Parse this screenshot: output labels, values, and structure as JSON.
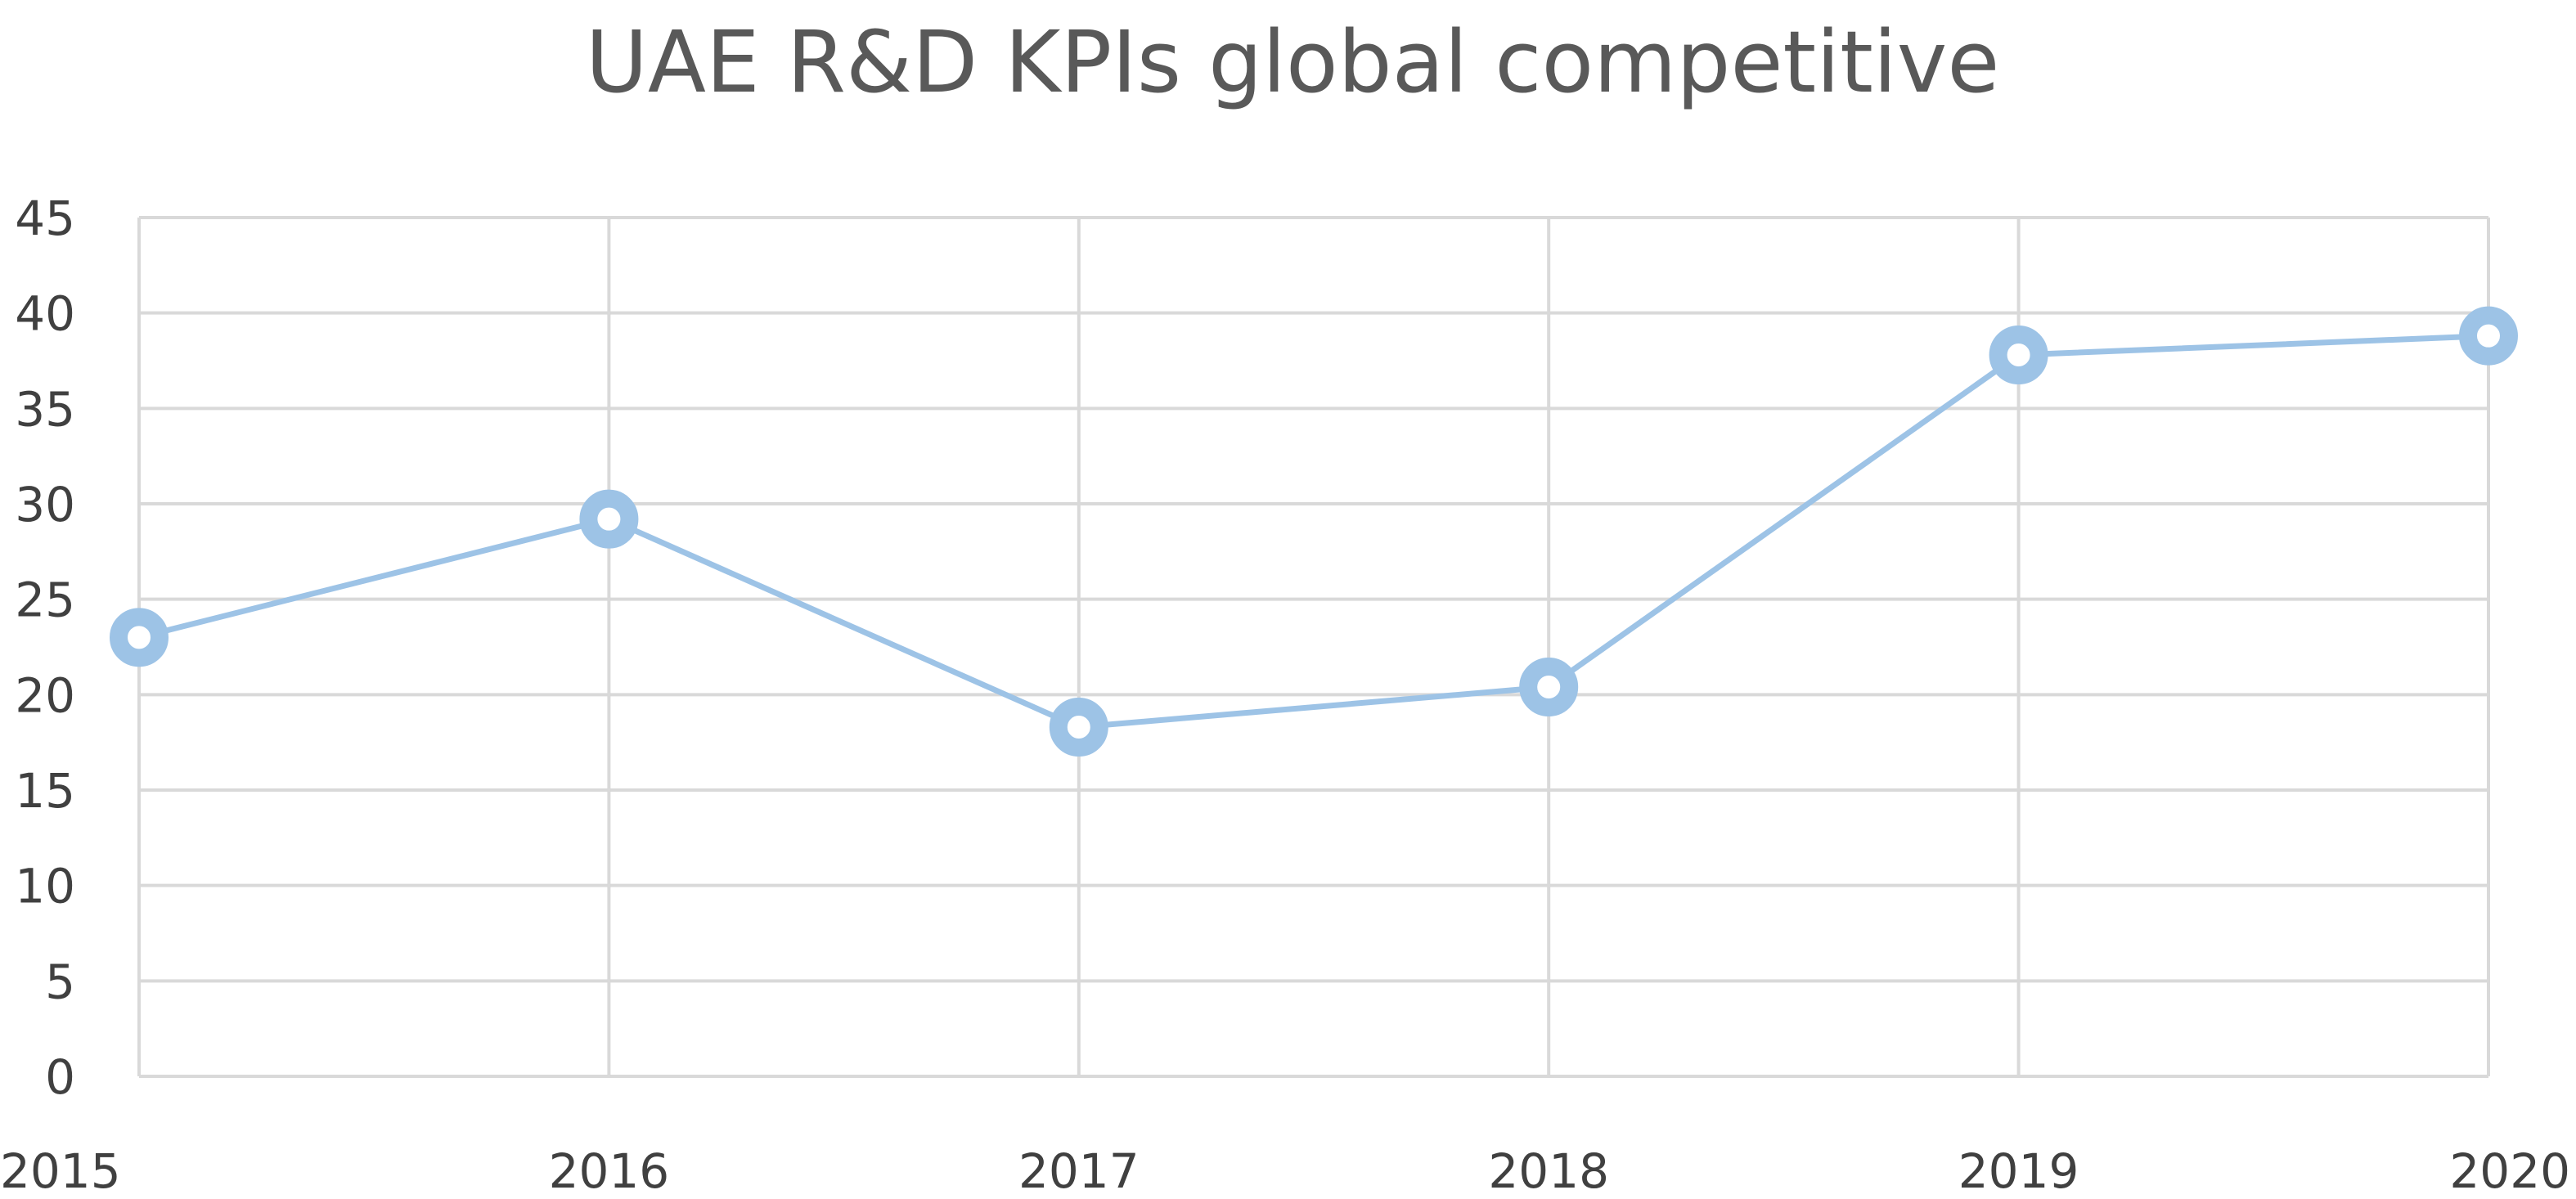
{
  "chart_data": {
    "type": "line",
    "title": "UAE R&D KPIs global competitive",
    "xlabel": "",
    "ylabel": "",
    "x": [
      "2015",
      "2016",
      "2017",
      "2018",
      "2019",
      "2020"
    ],
    "series": [
      {
        "values": [
          23,
          29.2,
          18.3,
          20.4,
          37.8,
          38.8
        ]
      }
    ],
    "ylim": [
      0,
      45
    ],
    "y_ticks": [
      "0",
      "5",
      "10",
      "15",
      "20",
      "25",
      "30",
      "35",
      "40",
      "45"
    ],
    "grid": true,
    "legend": "none",
    "line_color": "#9dc3e6",
    "marker_color": "#9dc3e6",
    "marker_fill": "#ffffff"
  }
}
